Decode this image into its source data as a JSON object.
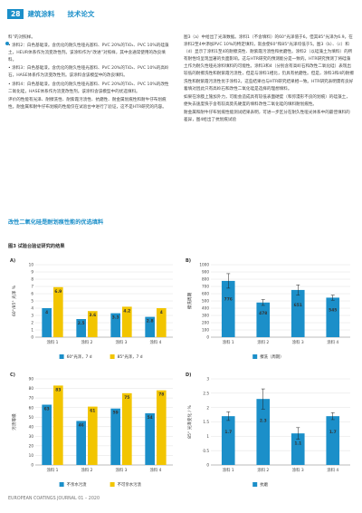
{
  "header": {
    "page_no": "28",
    "magazine": "建筑涂料",
    "section": "技术论文"
  },
  "left_column": [
    "料”的对照样。",
    "• 涂料2：白色基础漆。含优化的耐久性哑光基料、PVC 20%的TiO₂、PVC 10%的硅藻土，HEUR体系作为流变改性剂。该涂料作为“改进”对照样，其中含通常使用的改良填料。",
    "• 涂料3：白色基础漆。含优化的耐久性哑光基料、PVC 20%的TiO₂、PVC 10%的高岭石，HASE体系作为流变改性剂。该涂料含该模型中的改良填料。",
    "• 涂料4：白色基础漆。含优化的耐久性哑光基料、PVC 20%的TiO₂、PVC 10%的改性二氧化硅，HASE体系作为流变改性剂。该涂料含该模型中的优选填料。",
    "评价的性能有光泽、耐擦洗性、耐紫霞污渍性、抗磨性、耐金属划痕性和耐牛仔布划痕性。耐金属和耐牛仔布划痕的性能仅在试验台中进行了验证，这不是HTR研究的内容。"
  ],
  "section_heading": "改性二氧化硅是耐划痕性能的优选填料",
  "right_column": [
    "图3（a）中给出了光泽数据。涂料1（不含填料）的60°光泽值于6。但其85°光泽为6.9。在涂料2至4中添加PVC 10%的特定填料，就会使60°和85°光泽均低于5。图3（b）、（c）和（d）显示了涂料1至4的耐擦洗性、耐紫霞污渍性和抗磨性。涂料2（以硅藻土为填料）的所有耐性均呈现显著的负面影响。这与HTR研究的预测能分是一致的。HTR研究预测了将硅藻土作为耐久性哑光涂料填料的可能性。涂料3和4（分别含有高岭石和改性二氧化硅）表现出较低的耐擦洗性和耐紫霞污渍性，但是与涂料1相比，仍具有抗磨性。但是，涂料3和4的耐擦洗性和耐紫霞污渍性优于涂料2。这些结果也与HTR研究结果相一致。HTR研究表明需有良好着填对因此只有高岭石和改性二氧化硅是选择的理想填料。",
    "如果在涂膜上施加外力，可能会造成具有较低表面硬度（和弥漫形不良的划痕）的硅藻土，便失去速度快于含有较高莫氏硬度的填料改性二氧化硅的填料耐划痕性。",
    "耐金属和耐牛仔布划痕性能测试结果表明，可进一步区分在耐久性哑光体系中的最佳填料的差异，图4给出了抗划痕试验"
  ],
  "figure_title": "图3 试验台验证研究的结果",
  "charts": {
    "A": {
      "label": "A)",
      "ylabel": "60°/85° 光泽 %",
      "ylim": [
        0,
        10
      ],
      "ticks": [
        0,
        1,
        2,
        3,
        4,
        5,
        6,
        7,
        8,
        9,
        10
      ],
      "categories": [
        "涂料 1",
        "涂料 2",
        "涂料 3",
        "涂料 4"
      ],
      "series": [
        {
          "name": "60°光泽，7 d",
          "color": "#1b8fc9",
          "values": [
            4,
            2.5,
            3.3,
            2.8
          ]
        },
        {
          "name": "85°光泽，7 d",
          "color": "#f2c500",
          "values": [
            6.9,
            3.6,
            4.2,
            4
          ]
        }
      ],
      "value_labels": [
        [
          "4",
          "6.9"
        ],
        [
          "2.5",
          "3.6"
        ],
        [
          "3.3",
          "4.2"
        ],
        [
          "2.8",
          "4"
        ]
      ]
    },
    "B": {
      "label": "B)",
      "ylabel": "擦洗周期",
      "ylim": [
        0,
        1000
      ],
      "ticks": [
        0,
        100,
        200,
        300,
        400,
        500,
        600,
        700,
        800,
        900,
        1000
      ],
      "categories": [
        "涂料 1",
        "涂料 2",
        "涂料 3",
        "涂料 4"
      ],
      "series": [
        {
          "name": "擦洗（周期）",
          "color": "#1b8fc9",
          "values": [
            776,
            478,
            651,
            545
          ],
          "errors": [
            100,
            40,
            70,
            35
          ]
        }
      ],
      "value_labels": [
        [
          "776"
        ],
        [
          "478"
        ],
        [
          "651"
        ],
        [
          "545"
        ]
      ]
    },
    "C": {
      "label": "C)",
      "ylabel": "污渍等级",
      "ylim": [
        0,
        90
      ],
      "ticks": [
        0,
        10,
        20,
        30,
        40,
        50,
        60,
        70,
        80,
        90
      ],
      "categories": [
        "涂料 1",
        "涂料 2",
        "涂料 3",
        "涂料 4"
      ],
      "series": [
        {
          "name": "不亲水污渍",
          "color": "#1b8fc9",
          "values": [
            63,
            46,
            59,
            54
          ]
        },
        {
          "name": "不可亲水污渍",
          "color": "#f2c500",
          "values": [
            83,
            61,
            75,
            78
          ]
        }
      ],
      "value_labels": [
        [
          "63",
          "83"
        ],
        [
          "46",
          "61"
        ],
        [
          "59",
          "75"
        ],
        [
          "54",
          "78"
        ]
      ]
    },
    "D": {
      "label": "D)",
      "ylabel": "85° 光泽变化 / %",
      "ylim": [
        0,
        3
      ],
      "ticks": [
        "0",
        "0.5",
        "1",
        "1.5",
        "2",
        "2.5",
        "3"
      ],
      "categories": [
        "涂料 1",
        "涂料 2",
        "涂料 3",
        "涂料 4"
      ],
      "series": [
        {
          "name": "抗磨",
          "color": "#1b8fc9",
          "values": [
            1.7,
            2.3,
            1.1,
            1.7
          ],
          "errors": [
            0.15,
            0.35,
            0.2,
            0.12
          ]
        }
      ],
      "value_labels": [
        [
          "1.7"
        ],
        [
          "2.3"
        ],
        [
          "1.1"
        ],
        [
          "1.7"
        ]
      ]
    }
  },
  "footer": "EUROPEAN COATINGS JOURNAL 01 – 2020"
}
